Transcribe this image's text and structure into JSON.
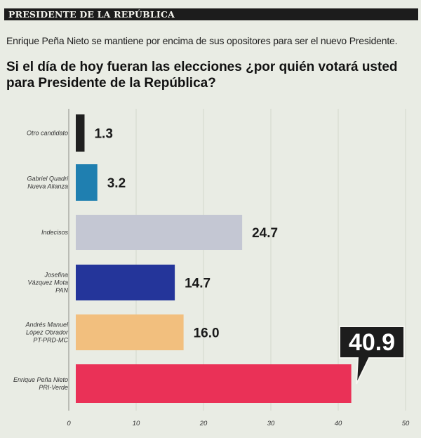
{
  "header": {
    "banner": "PRESIDENTE DE LA REPÚBLICA"
  },
  "subtitle": "Enrique Peña Nieto se mantiene por encima de sus opositores para ser el nuevo Presidente.",
  "question": "Si el día de hoy fueran las elecciones ¿por quién votará usted para Presidente de la República?",
  "chart_data": {
    "type": "bar",
    "orientation": "horizontal",
    "title": "Si el día de hoy fueran las elecciones ¿por quién votará usted para Presidente de la República?",
    "categories": [
      [
        "Otro candidato"
      ],
      [
        "Gabriel Quadri",
        "Nueva Alianza"
      ],
      [
        "Indecisos"
      ],
      [
        "Josefina",
        "Vázquez Mota",
        "PAN"
      ],
      [
        "Andrés Manuel",
        "López Obrador",
        "PT-PRD-MC"
      ],
      [
        "Enrique Peña Nieto",
        "PRI-Verde"
      ]
    ],
    "values": [
      1.3,
      3.2,
      24.7,
      14.7,
      16.0,
      40.9
    ],
    "value_labels": [
      "1.3",
      "3.2",
      "24.7",
      "14.7",
      "16.0",
      "40.9"
    ],
    "colors": [
      "#1f1f1f",
      "#1f7fb0",
      "#c4c7d3",
      "#24359a",
      "#f2bf7e",
      "#ea3157"
    ],
    "highlight_index": 5,
    "xlim": [
      0,
      50
    ],
    "xticks": [
      0,
      10,
      20,
      30,
      40,
      50
    ],
    "xtick_labels": [
      "0",
      "10",
      "20",
      "30",
      "40",
      "50"
    ],
    "grid": true
  }
}
